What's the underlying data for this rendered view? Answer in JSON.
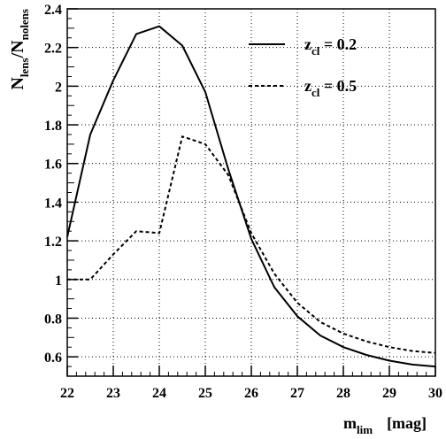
{
  "chart_data": {
    "type": "line",
    "title": "",
    "xlabel": {
      "main": "m",
      "sub": "lim",
      "unit": "[mag]"
    },
    "ylabel": {
      "main1": "N",
      "sub1": "lens",
      "sep": "/N",
      "sub2": "nolens"
    },
    "xlim": [
      22,
      30
    ],
    "ylim": [
      0.5,
      2.4
    ],
    "grid": true,
    "legend_position": "top-right",
    "x_ticks": [
      22,
      23,
      24,
      25,
      26,
      27,
      28,
      29,
      30
    ],
    "y_ticks": [
      0.6,
      0.8,
      1,
      1.2,
      1.4,
      1.6,
      1.8,
      2,
      2.2,
      2.4
    ],
    "y_tick_labels": [
      "0.6",
      "0.8",
      "1",
      "1.2",
      "1.4",
      "1.6",
      "1.8",
      "2",
      "2.2",
      "2.4"
    ],
    "series": [
      {
        "legend_main": "z",
        "legend_sub": "cl",
        "legend_value": " = 0.2",
        "style": "solid",
        "x": [
          22,
          22.5,
          23,
          23.5,
          24,
          24.5,
          25,
          25.5,
          26,
          26.5,
          27,
          27.5,
          28,
          28.5,
          29,
          29.5,
          30
        ],
        "y": [
          1.22,
          1.75,
          2.03,
          2.27,
          2.31,
          2.21,
          1.97,
          1.57,
          1.21,
          0.96,
          0.81,
          0.71,
          0.65,
          0.61,
          0.58,
          0.56,
          0.55
        ]
      },
      {
        "legend_main": "z",
        "legend_sub": "cl",
        "legend_value": " = 0.5",
        "style": "dashed",
        "x": [
          22,
          22.5,
          23,
          23.5,
          24,
          24.5,
          25,
          25.5,
          26,
          26.5,
          27,
          27.5,
          28,
          28.5,
          29,
          29.5,
          30
        ],
        "y": [
          1.0,
          1.0,
          1.13,
          1.25,
          1.24,
          1.74,
          1.7,
          1.54,
          1.24,
          1.03,
          0.88,
          0.78,
          0.72,
          0.68,
          0.65,
          0.63,
          0.62
        ]
      }
    ]
  }
}
